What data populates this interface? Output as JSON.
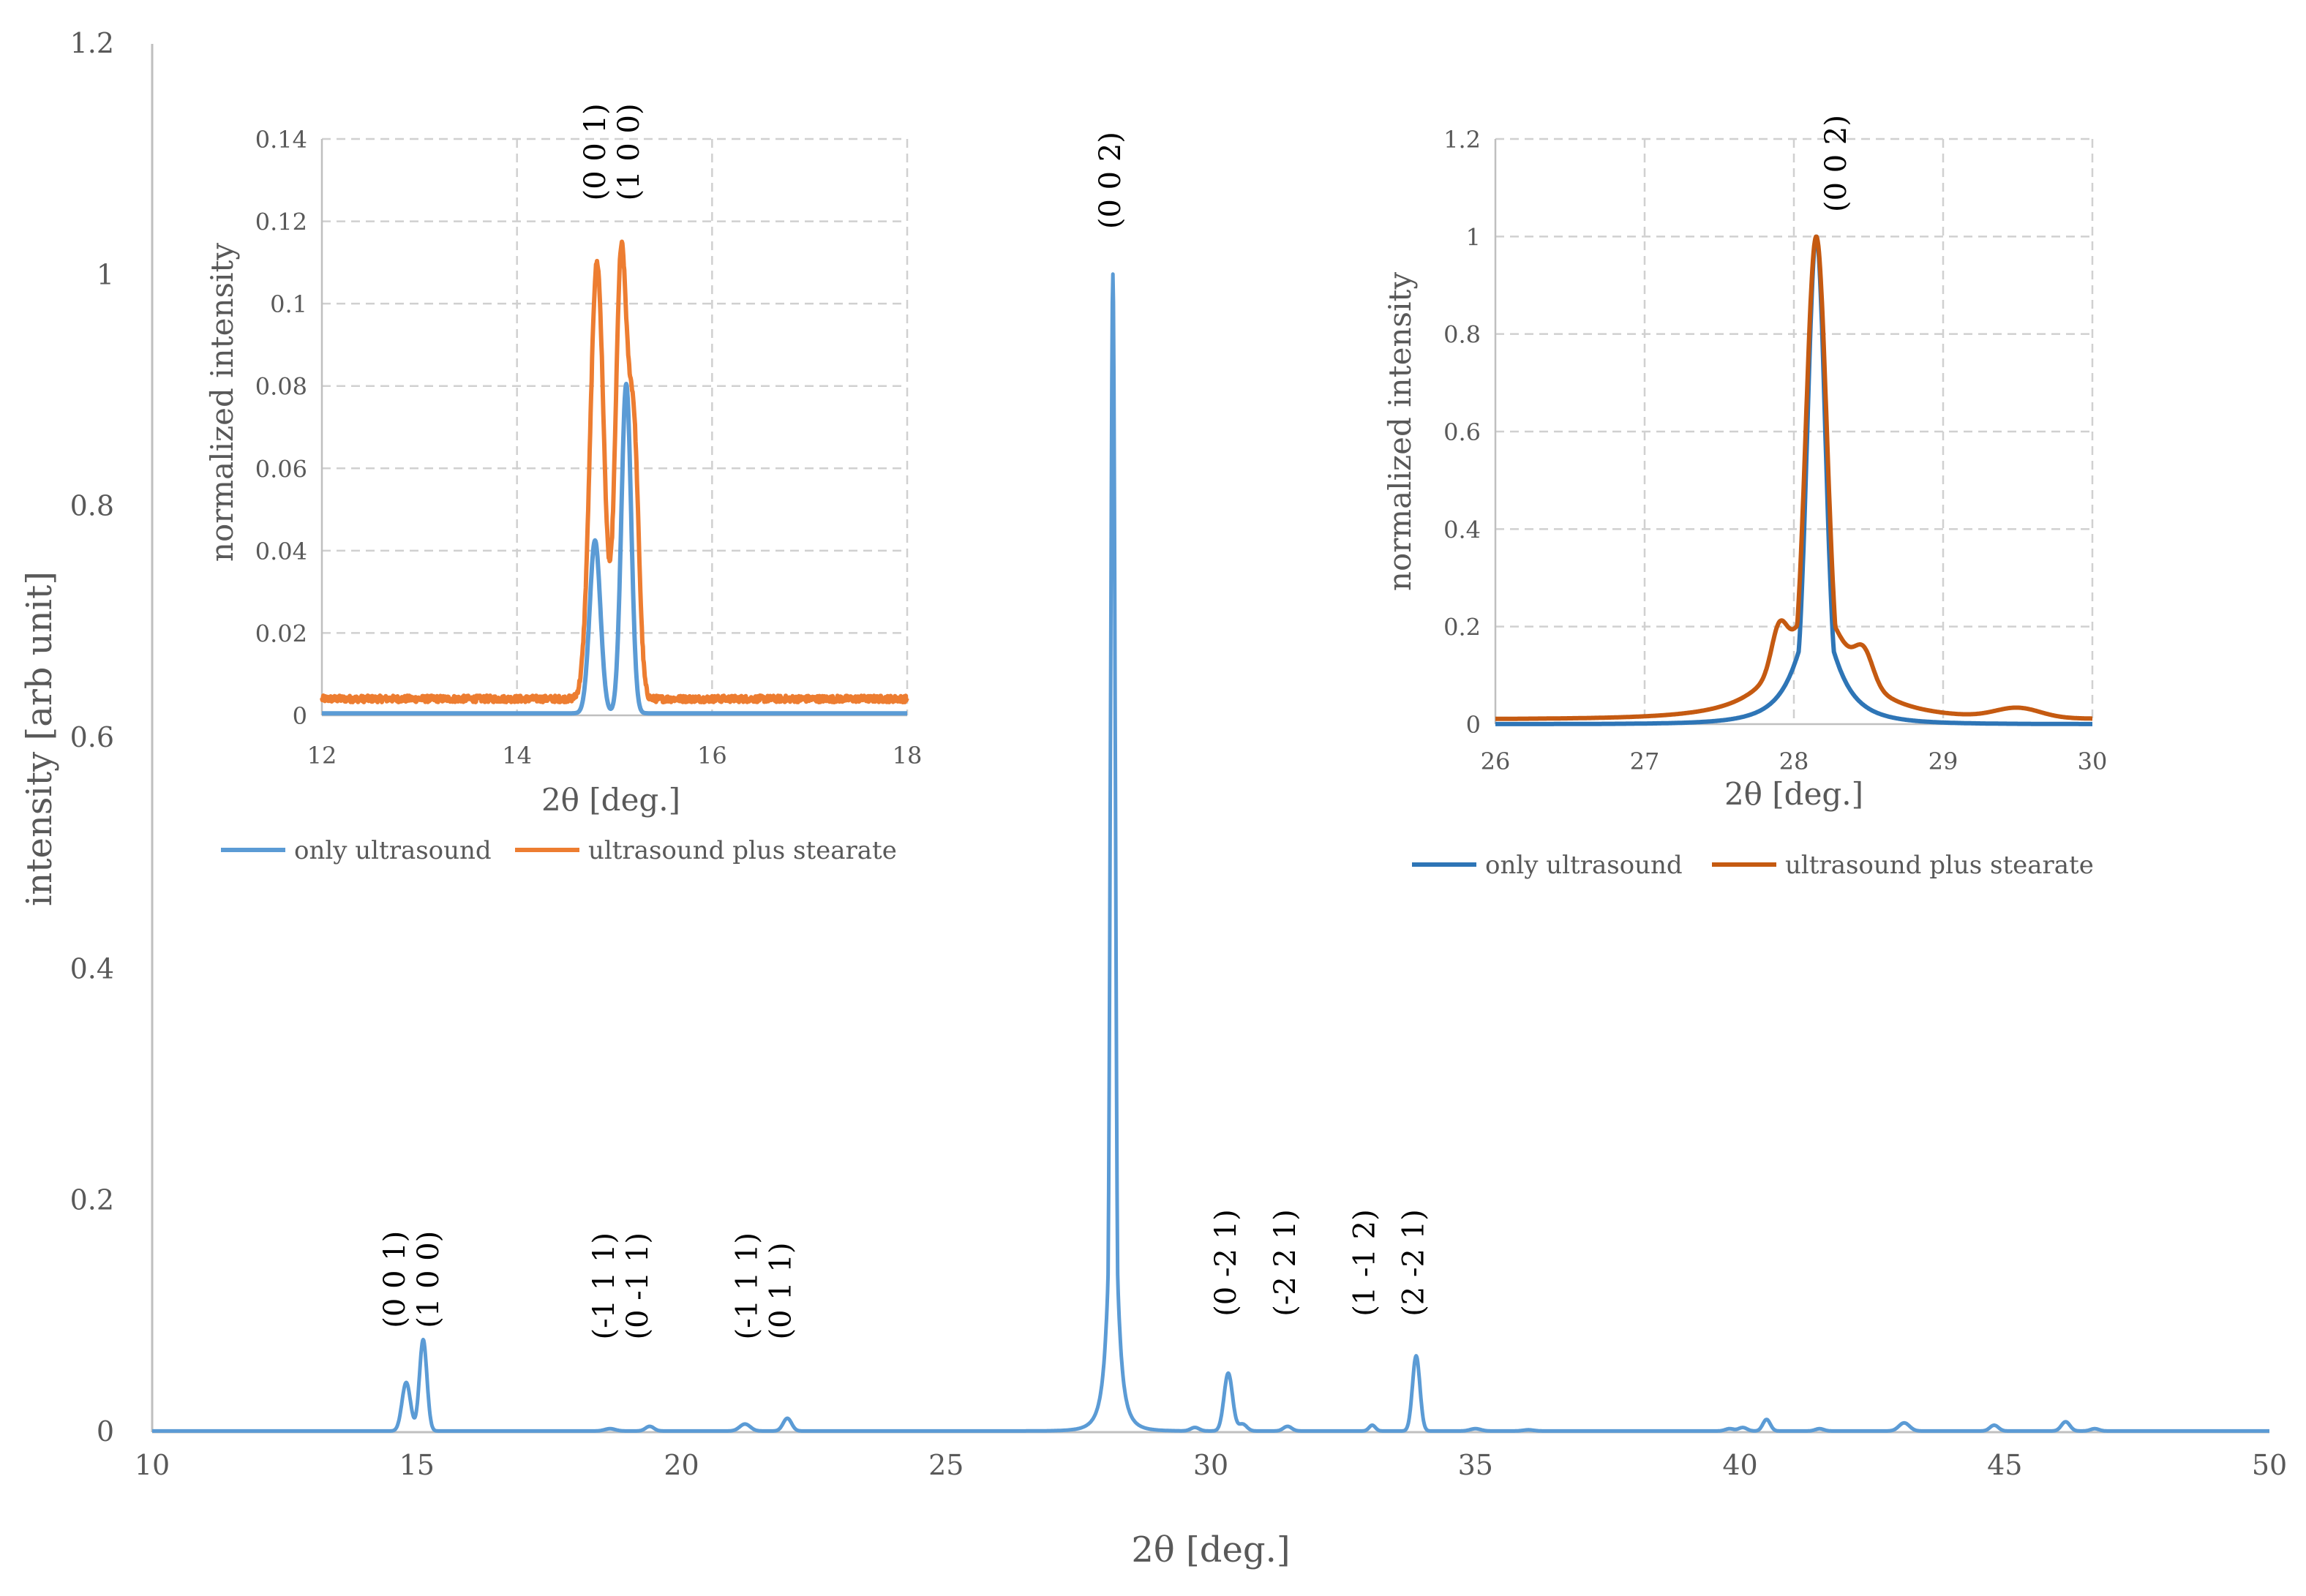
{
  "chart_data": [
    {
      "id": "main",
      "type": "line",
      "title": "",
      "xlabel": "2θ [deg.]",
      "ylabel": "intensity [arb unit]",
      "xlim": [
        10,
        50
      ],
      "ylim": [
        0,
        1.2
      ],
      "xticks": [
        10,
        15,
        20,
        25,
        30,
        35,
        40,
        45,
        50
      ],
      "yticks": [
        0,
        0.2,
        0.4,
        0.6,
        0.8,
        1,
        1.2
      ],
      "xtick_labels": [
        "10",
        "15",
        "20",
        "25",
        "30",
        "35",
        "40",
        "45",
        "50"
      ],
      "ytick_labels": [
        "0",
        "0.2",
        "0.4",
        "0.6",
        "0.8",
        "1",
        "1.2"
      ],
      "grid": false,
      "series": [
        {
          "name": "only ultrasound",
          "color": "#5B9BD5",
          "baseline": 0.001,
          "peaks": [
            {
              "x": 14.8,
              "h": 0.042,
              "w": 0.08
            },
            {
              "x": 15.12,
              "h": 0.079,
              "w": 0.07
            },
            {
              "x": 18.65,
              "h": 0.002,
              "w": 0.1
            },
            {
              "x": 19.4,
              "h": 0.004,
              "w": 0.08
            },
            {
              "x": 21.2,
              "h": 0.006,
              "w": 0.1
            },
            {
              "x": 22.0,
              "h": 0.011,
              "w": 0.08
            },
            {
              "x": 28.15,
              "h": 1.0,
              "w": 0.045,
              "tail": 0.12
            },
            {
              "x": 29.7,
              "h": 0.003,
              "w": 0.08
            },
            {
              "x": 30.33,
              "h": 0.05,
              "w": 0.08
            },
            {
              "x": 30.6,
              "h": 0.006,
              "w": 0.08
            },
            {
              "x": 31.45,
              "h": 0.004,
              "w": 0.08
            },
            {
              "x": 33.05,
              "h": 0.005,
              "w": 0.06
            },
            {
              "x": 33.88,
              "h": 0.065,
              "w": 0.07
            },
            {
              "x": 35.0,
              "h": 0.002,
              "w": 0.1
            },
            {
              "x": 36.0,
              "h": 0.001,
              "w": 0.1
            },
            {
              "x": 39.8,
              "h": 0.002,
              "w": 0.08
            },
            {
              "x": 40.05,
              "h": 0.003,
              "w": 0.08
            },
            {
              "x": 40.5,
              "h": 0.01,
              "w": 0.07
            },
            {
              "x": 41.5,
              "h": 0.002,
              "w": 0.08
            },
            {
              "x": 43.1,
              "h": 0.007,
              "w": 0.1
            },
            {
              "x": 44.8,
              "h": 0.005,
              "w": 0.08
            },
            {
              "x": 46.15,
              "h": 0.008,
              "w": 0.08
            },
            {
              "x": 46.7,
              "h": 0.002,
              "w": 0.08
            }
          ]
        }
      ],
      "annotations": [
        {
          "lines": [
            "(0 0 1)",
            "(1 0 0)"
          ],
          "x": 14.95,
          "y": 0.09
        },
        {
          "lines": [
            "(-1 1 1)",
            "(0 -1 1)"
          ],
          "x": 18.9,
          "y": 0.08
        },
        {
          "lines": [
            "(-1 1 1)",
            "(0 1 1)"
          ],
          "x": 21.6,
          "y": 0.08
        },
        {
          "lines": [
            "(0 0 2)"
          ],
          "x": 28.15,
          "y": 1.04
        },
        {
          "lines": [
            "(0 -2 1)"
          ],
          "x": 30.33,
          "y": 0.1
        },
        {
          "lines": [
            "(-2 2 1)"
          ],
          "x": 31.45,
          "y": 0.1
        },
        {
          "lines": [
            "(1 -1 2)"
          ],
          "x": 32.95,
          "y": 0.1
        },
        {
          "lines": [
            "(2 -2 1)"
          ],
          "x": 33.88,
          "y": 0.1
        }
      ]
    },
    {
      "id": "inset-left",
      "type": "line",
      "title": "",
      "xlabel": "2θ [deg.]",
      "ylabel": "normalized  intensity",
      "xlim": [
        12,
        18
      ],
      "ylim": [
        0,
        0.14
      ],
      "xticks": [
        12,
        14,
        16,
        18
      ],
      "yticks": [
        0,
        0.02,
        0.04,
        0.06,
        0.08,
        0.1,
        0.12,
        0.14
      ],
      "xtick_labels": [
        "12",
        "14",
        "16",
        "18"
      ],
      "ytick_labels": [
        "0",
        "0.02",
        "0.04",
        "0.06",
        "0.08",
        "0.1",
        "0.12",
        "0.14"
      ],
      "grid": true,
      "legend_position": "bottom",
      "series": [
        {
          "name": "only ultrasound",
          "color": "#5B9BD5",
          "baseline": 0.0005,
          "peaks": [
            {
              "x": 14.8,
              "h": 0.042,
              "w": 0.055
            },
            {
              "x": 15.12,
              "h": 0.08,
              "w": 0.05
            }
          ]
        },
        {
          "name": "ultrasound plus stearate",
          "color": "#ED7D31",
          "baseline": 0.004,
          "noise": 0.0008,
          "peaks": [
            {
              "x": 14.82,
              "h": 0.106,
              "w": 0.07
            },
            {
              "x": 15.07,
              "h": 0.108,
              "w": 0.06
            },
            {
              "x": 15.2,
              "h": 0.06,
              "w": 0.05
            }
          ]
        }
      ],
      "annotations": [
        {
          "lines": [
            "(0 0 1)",
            "(1 0 0)"
          ],
          "x": 15.0,
          "y": 0.125
        }
      ]
    },
    {
      "id": "inset-right",
      "type": "line",
      "title": "",
      "xlabel": "2θ [deg.]",
      "ylabel": "normalized  intensity",
      "xlim": [
        26,
        30
      ],
      "ylim": [
        0,
        1.2
      ],
      "xticks": [
        26,
        27,
        28,
        29,
        30
      ],
      "yticks": [
        0,
        0.2,
        0.4,
        0.6,
        0.8,
        1,
        1.2
      ],
      "xtick_labels": [
        "26",
        "27",
        "28",
        "29",
        "30"
      ],
      "ytick_labels": [
        "0",
        "0.2",
        "0.4",
        "0.6",
        "0.8",
        "1",
        "1.2"
      ],
      "grid": true,
      "legend_position": "bottom",
      "series": [
        {
          "name": "only ultrasound",
          "color": "#2E75B6",
          "baseline": 0.0,
          "peaks": [
            {
              "x": 28.15,
              "h": 1.0,
              "w": 0.06,
              "tail": 0.18
            }
          ]
        },
        {
          "name": "ultrasound plus stearate",
          "color": "#C55A11",
          "baseline": 0.01,
          "peaks": [
            {
              "x": 28.15,
              "h": 0.99,
              "w": 0.07,
              "tail": 0.3
            },
            {
              "x": 27.9,
              "h": 0.08,
              "w": 0.05
            },
            {
              "x": 28.47,
              "h": 0.06,
              "w": 0.06
            },
            {
              "x": 29.5,
              "h": 0.02,
              "w": 0.15
            }
          ]
        }
      ],
      "annotations": [
        {
          "lines": [
            "(0 0 2)"
          ],
          "x": 28.3,
          "y": 1.05
        }
      ]
    }
  ]
}
